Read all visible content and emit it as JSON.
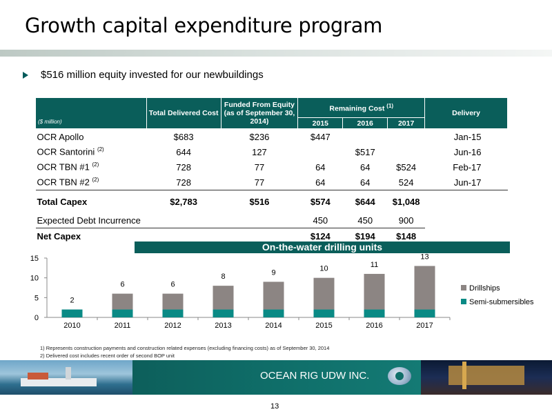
{
  "slide": {
    "title": "Growth capital expenditure program",
    "bullet": "$516 million equity invested for our newbuildings",
    "page_number": "13",
    "company": "OCEAN RIG UDW INC."
  },
  "table": {
    "headers": {
      "unit": "($ million)",
      "total_delivered": "Total Delivered Cost",
      "funded": "Funded From Equity (as of September 30, 2014)",
      "remaining": "Remaining Cost",
      "remaining_sup": "(1)",
      "delivery": "Delivery",
      "years": [
        "2015",
        "2016",
        "2017"
      ]
    },
    "rows": [
      {
        "name": "OCR Apollo",
        "sup": "",
        "total": "$683",
        "funded": "$236",
        "y2015": "$447",
        "y2016": "",
        "y2017": "",
        "delivery": "Jan-15"
      },
      {
        "name": "OCR Santorini",
        "sup": "(2)",
        "total": "644",
        "funded": "127",
        "y2015": "",
        "y2016": "$517",
        "y2017": "",
        "delivery": "Jun-16"
      },
      {
        "name": "OCR TBN #1",
        "sup": "(2)",
        "total": "728",
        "funded": "77",
        "y2015": "64",
        "y2016": "64",
        "y2017": "$524",
        "delivery": "Feb-17"
      },
      {
        "name": "OCR TBN #2",
        "sup": "(2)",
        "total": "728",
        "funded": "77",
        "y2015": "64",
        "y2016": "64",
        "y2017": "524",
        "delivery": "Jun-17"
      }
    ],
    "total_capex": {
      "name": "Total Capex",
      "total": "$2,783",
      "funded": "$516",
      "y2015": "$574",
      "y2016": "$644",
      "y2017": "$1,048"
    },
    "debt": {
      "name": "Expected Debt Incurrence",
      "y2015": "450",
      "y2016": "450",
      "y2017": "900"
    },
    "net_capex": {
      "name": "Net Capex",
      "y2015": "$124",
      "y2016": "$194",
      "y2017": "$148"
    }
  },
  "chart_data": {
    "type": "bar",
    "stacked": true,
    "title": "On-the-water drilling units",
    "categories": [
      "2010",
      "2011",
      "2012",
      "2013",
      "2014",
      "2015",
      "2016",
      "2017"
    ],
    "series": [
      {
        "name": "Semi-submersibles",
        "values": [
          2,
          2,
          2,
          2,
          2,
          2,
          2,
          2
        ],
        "color": "#0a8a85"
      },
      {
        "name": "Drillships",
        "values": [
          0,
          4,
          4,
          6,
          7,
          8,
          9,
          11
        ],
        "color": "#8c8583"
      }
    ],
    "totals": [
      2,
      6,
      6,
      8,
      9,
      10,
      11,
      13
    ],
    "ylim": [
      0,
      15
    ],
    "yticks": [
      0,
      5,
      10,
      15
    ],
    "legend_position": "right"
  },
  "footnotes": [
    "1) Represents construction payments and construction related expenses (excluding financing costs) as of September 30, 2014",
    "2) Delivered cost includes recent order of second BOP unit"
  ],
  "colors": {
    "accent": "#0a5e5a",
    "semi": "#0a8a85",
    "drill": "#8c8583"
  }
}
